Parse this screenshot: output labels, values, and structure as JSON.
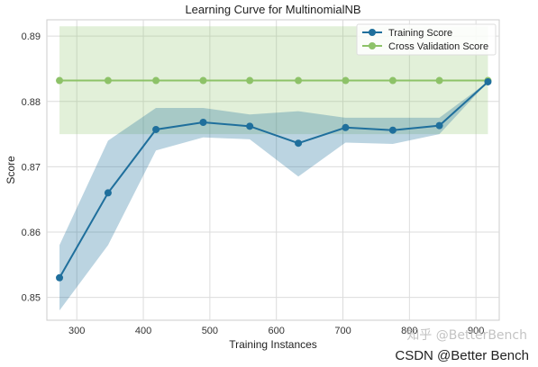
{
  "chart_data": {
    "type": "line",
    "title": "Learning Curve for MultinomialNB",
    "xlabel": "Training Instances",
    "ylabel": "Score",
    "xlim": [
      255,
      935
    ],
    "ylim": [
      0.8465,
      0.8925
    ],
    "xticks": [
      300,
      400,
      500,
      600,
      700,
      800,
      900
    ],
    "yticks": [
      0.85,
      0.86,
      0.87,
      0.88,
      0.89
    ],
    "ytick_labels": [
      "0.85",
      "0.86",
      "0.87",
      "0.88",
      "0.89"
    ],
    "grid": true,
    "legend_position": "top-right",
    "x": [
      274,
      347,
      419,
      490,
      560,
      633,
      704,
      775,
      845,
      918
    ],
    "series": [
      {
        "name": "Training Score",
        "color": "#1f6f9c",
        "values": [
          0.853,
          0.866,
          0.8757,
          0.8768,
          0.8762,
          0.8736,
          0.876,
          0.8756,
          0.8763,
          0.883
        ],
        "band_upper": [
          0.858,
          0.874,
          0.879,
          0.879,
          0.878,
          0.8785,
          0.8775,
          0.8775,
          0.8775,
          0.883
        ],
        "band_lower": [
          0.848,
          0.858,
          0.8725,
          0.8745,
          0.8742,
          0.8685,
          0.8737,
          0.8735,
          0.875,
          0.883
        ]
      },
      {
        "name": "Cross Validation Score",
        "color": "#8dc268",
        "values": [
          0.8832,
          0.8832,
          0.8832,
          0.8832,
          0.8832,
          0.8832,
          0.8832,
          0.8832,
          0.8832,
          0.8832
        ],
        "band_upper": [
          0.8915,
          0.8915,
          0.8915,
          0.8915,
          0.8915,
          0.8915,
          0.8915,
          0.8915,
          0.8915,
          0.8915
        ],
        "band_lower": [
          0.875,
          0.875,
          0.875,
          0.875,
          0.875,
          0.875,
          0.875,
          0.875,
          0.875,
          0.875
        ]
      }
    ]
  },
  "watermark": {
    "line1": "知乎 @BetterBench",
    "line2": "CSDN @Better Bench"
  }
}
